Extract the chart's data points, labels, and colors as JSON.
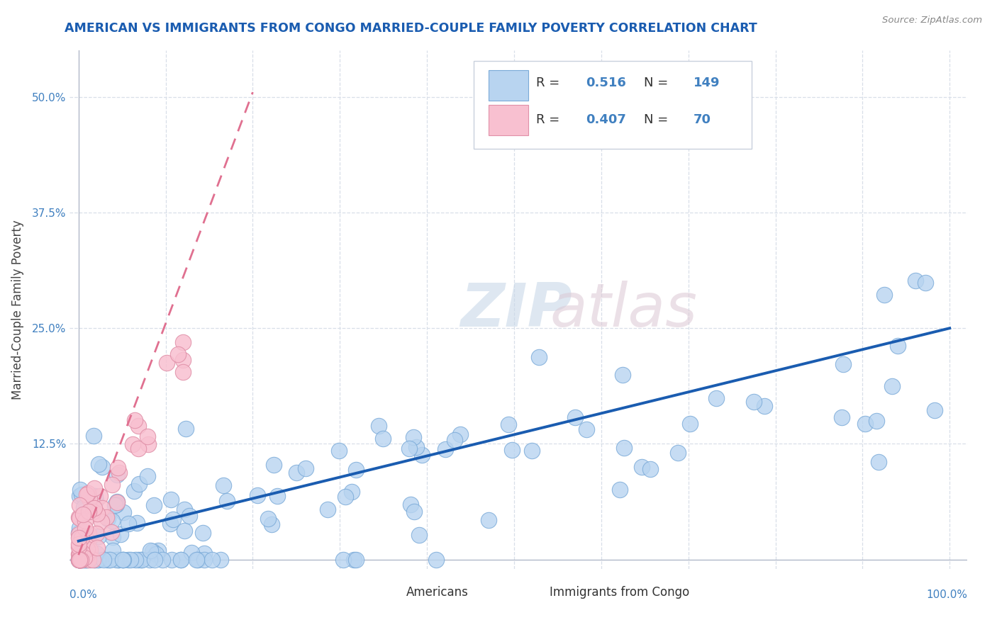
{
  "title": "AMERICAN VS IMMIGRANTS FROM CONGO MARRIED-COUPLE FAMILY POVERTY CORRELATION CHART",
  "source": "Source: ZipAtlas.com",
  "ylabel": "Married-Couple Family Poverty",
  "xlim": [
    0.0,
    1.0
  ],
  "ylim": [
    -0.01,
    0.55
  ],
  "blue_color": "#b8d4f0",
  "pink_color": "#f8c0d0",
  "blue_line_color": "#1a5cb0",
  "pink_line_color": "#e07090",
  "blue_scatter_edge": "#7aaad8",
  "pink_scatter_edge": "#e090a8",
  "title_color": "#1a5cb0",
  "axis_label_color": "#4080c0",
  "legend_value_color": "#4080c0",
  "grid_color": "#d8dfe8",
  "background_color": "#ffffff",
  "watermark_zip_color": "#c8d8e8",
  "watermark_atlas_color": "#dcc8d4"
}
